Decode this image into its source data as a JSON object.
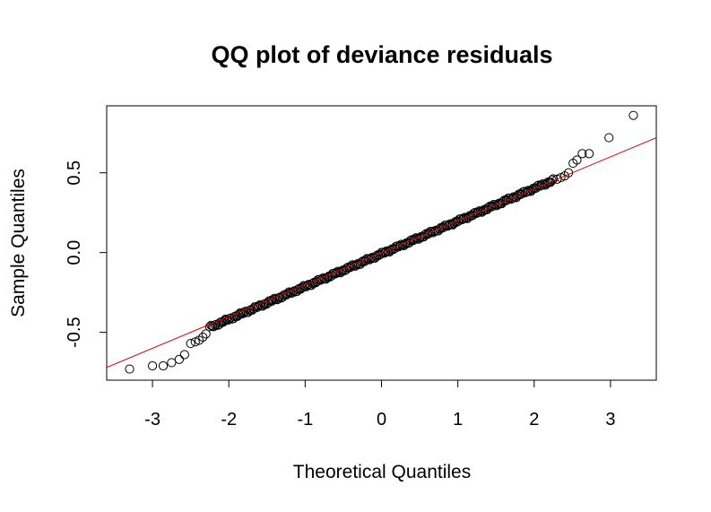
{
  "chart_data": {
    "type": "scatter",
    "title": "QQ plot of deviance residuals",
    "xlabel": "Theoretical Quantiles",
    "ylabel": "Sample Quantiles",
    "xlim": [
      -3.6,
      3.6
    ],
    "ylim": [
      -0.8,
      0.92
    ],
    "x_ticks": [
      -3,
      -2,
      -1,
      0,
      1,
      2,
      3
    ],
    "x_tick_labels": [
      "-3",
      "-2",
      "-1",
      "0",
      "1",
      "2",
      "3"
    ],
    "y_ticks": [
      -0.5,
      0.0,
      0.5
    ],
    "y_tick_labels": [
      "-0.5",
      "0.0",
      "0.5"
    ],
    "grid": false,
    "marker": "open-circle",
    "marker_color": "#000000",
    "reference_line": {
      "color": "#d00000",
      "intercept": 0.0,
      "slope": 0.2
    },
    "points_bulk": {
      "x_from": -2.25,
      "x_to": 2.25,
      "intercept": -0.008,
      "slope": 0.205
    },
    "points_tails": [
      {
        "x": -3.3,
        "y": -0.73
      },
      {
        "x": -3.0,
        "y": -0.71
      },
      {
        "x": -2.86,
        "y": -0.71
      },
      {
        "x": -2.75,
        "y": -0.69
      },
      {
        "x": -2.65,
        "y": -0.67
      },
      {
        "x": -2.58,
        "y": -0.64
      },
      {
        "x": -2.5,
        "y": -0.57
      },
      {
        "x": -2.44,
        "y": -0.56
      },
      {
        "x": -2.39,
        "y": -0.55
      },
      {
        "x": -2.34,
        "y": -0.53
      },
      {
        "x": -2.3,
        "y": -0.51
      },
      {
        "x": 2.3,
        "y": 0.46
      },
      {
        "x": 2.35,
        "y": 0.47
      },
      {
        "x": 2.4,
        "y": 0.48
      },
      {
        "x": 2.45,
        "y": 0.5
      },
      {
        "x": 2.51,
        "y": 0.56
      },
      {
        "x": 2.56,
        "y": 0.58
      },
      {
        "x": 2.63,
        "y": 0.62
      },
      {
        "x": 2.72,
        "y": 0.62
      },
      {
        "x": 2.98,
        "y": 0.72
      },
      {
        "x": 3.3,
        "y": 0.86
      }
    ]
  }
}
